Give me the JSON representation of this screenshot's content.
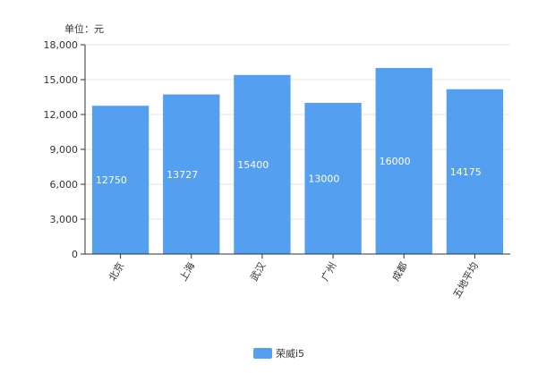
{
  "chart_data": {
    "type": "bar",
    "unit_label": "单位：元",
    "categories": [
      "北京",
      "上海",
      "武汉",
      "广州",
      "成都",
      "五地平均"
    ],
    "series": [
      {
        "name": "荣威i5",
        "values": [
          12750,
          13727,
          15400,
          13000,
          16000,
          14175
        ]
      }
    ],
    "y_ticks": [
      "0",
      "3,000",
      "6,000",
      "9,000",
      "12,000",
      "15,000",
      "18,000"
    ],
    "ylim": [
      0,
      18000
    ],
    "grid": true,
    "legend_position": "bottom",
    "bar_color": "#559FF0",
    "grid_color": "#E6E6E6",
    "axis_color": "#333333"
  }
}
